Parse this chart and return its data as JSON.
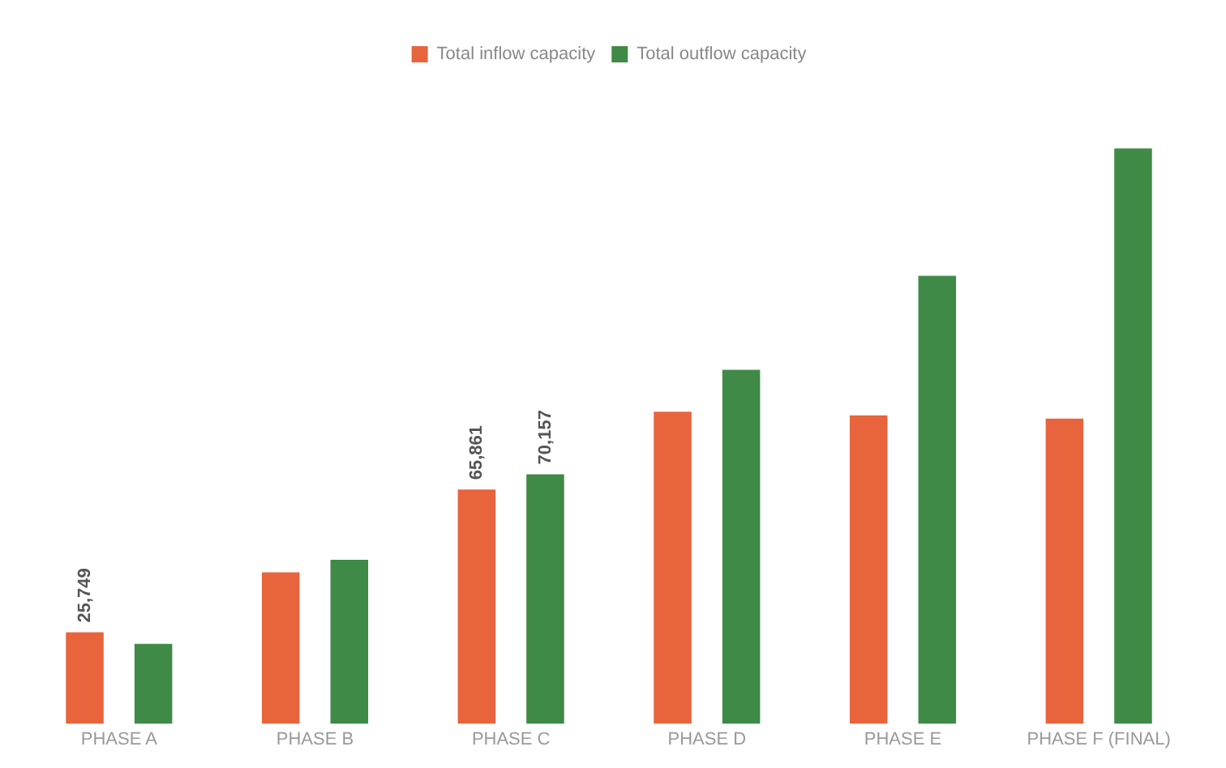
{
  "chart_data": {
    "type": "bar",
    "legend": "top",
    "grid": false,
    "tick_labels": "x",
    "categories": [
      "PHASE A",
      "PHASE B",
      "PHASE C",
      "PHASE D",
      "PHASE E",
      "PHASE F (FINAL)"
    ],
    "series": [
      {
        "name": "Total inflow capacity",
        "color": "#e8643c",
        "values": [
          25749,
          42600,
          65861,
          87700,
          86700,
          85800
        ],
        "value_labels": [
          "25,749",
          null,
          "65,861",
          null,
          null,
          null
        ]
      },
      {
        "name": "Total outflow capacity",
        "color": "#3e8a46",
        "values": [
          22500,
          46100,
          70157,
          99500,
          125900,
          161700
        ],
        "value_labels": [
          null,
          null,
          "70,157",
          null,
          null,
          null
        ]
      }
    ]
  }
}
